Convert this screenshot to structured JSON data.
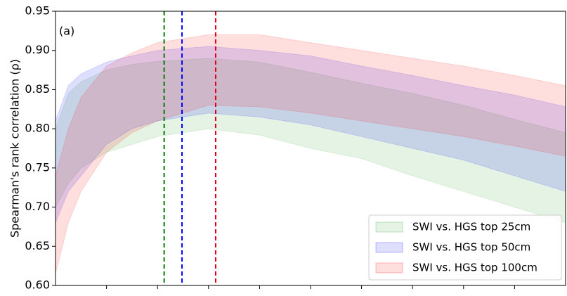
{
  "chart_data": {
    "type": "band",
    "ylabel": "Spearman's rank correlation (ρ)",
    "annotation": "(a)",
    "x": [
      0,
      0.25,
      0.5,
      1,
      1.5,
      2,
      3,
      4,
      5,
      6,
      7,
      8,
      9,
      10
    ],
    "xlim": [
      0,
      10
    ],
    "xticks": [
      1,
      2,
      3,
      4,
      5,
      6,
      7,
      8,
      9
    ],
    "ylim": [
      0.6,
      0.95
    ],
    "yticks": [
      {
        "value": 0.6,
        "label": "0.60"
      },
      0.65,
      {
        "value": 0.7,
        "label": "0.70"
      },
      0.75,
      {
        "value": 0.8,
        "label": "0.80"
      },
      0.85,
      {
        "value": 0.9,
        "label": "0.90"
      },
      0.95
    ],
    "alpha": 0.13,
    "series": [
      {
        "name": "SWI vs. HGS top 25cm",
        "color": "#2ca02c",
        "lower": [
          0.7,
          0.73,
          0.75,
          0.77,
          0.78,
          0.79,
          0.8,
          0.792,
          0.775,
          0.762,
          0.74,
          0.72,
          0.7,
          0.68
        ],
        "upper": [
          0.8,
          0.845,
          0.86,
          0.875,
          0.882,
          0.886,
          0.89,
          0.885,
          0.872,
          0.858,
          0.845,
          0.83,
          0.812,
          0.795
        ]
      },
      {
        "name": "SWI vs. HGS top 50cm",
        "color": "#0000ff",
        "lower": [
          0.68,
          0.72,
          0.74,
          0.78,
          0.8,
          0.81,
          0.82,
          0.815,
          0.805,
          0.79,
          0.775,
          0.76,
          0.74,
          0.72
        ],
        "upper": [
          0.81,
          0.855,
          0.87,
          0.885,
          0.893,
          0.9,
          0.905,
          0.9,
          0.893,
          0.88,
          0.868,
          0.855,
          0.843,
          0.828
        ]
      },
      {
        "name": "SWI vs. HGS top 100cm",
        "color": "#ff0000",
        "lower": [
          0.615,
          0.68,
          0.72,
          0.77,
          0.795,
          0.81,
          0.83,
          0.828,
          0.82,
          0.81,
          0.8,
          0.79,
          0.778,
          0.765
        ],
        "upper": [
          0.74,
          0.8,
          0.84,
          0.88,
          0.897,
          0.91,
          0.92,
          0.92,
          0.91,
          0.9,
          0.89,
          0.88,
          0.868,
          0.855
        ]
      }
    ],
    "vlines": [
      {
        "x": 2.13,
        "color": "#008000"
      },
      {
        "x": 2.48,
        "color": "#0000ff"
      },
      {
        "x": 3.14,
        "color": "#e0001b"
      }
    ],
    "legend": "lower right"
  }
}
